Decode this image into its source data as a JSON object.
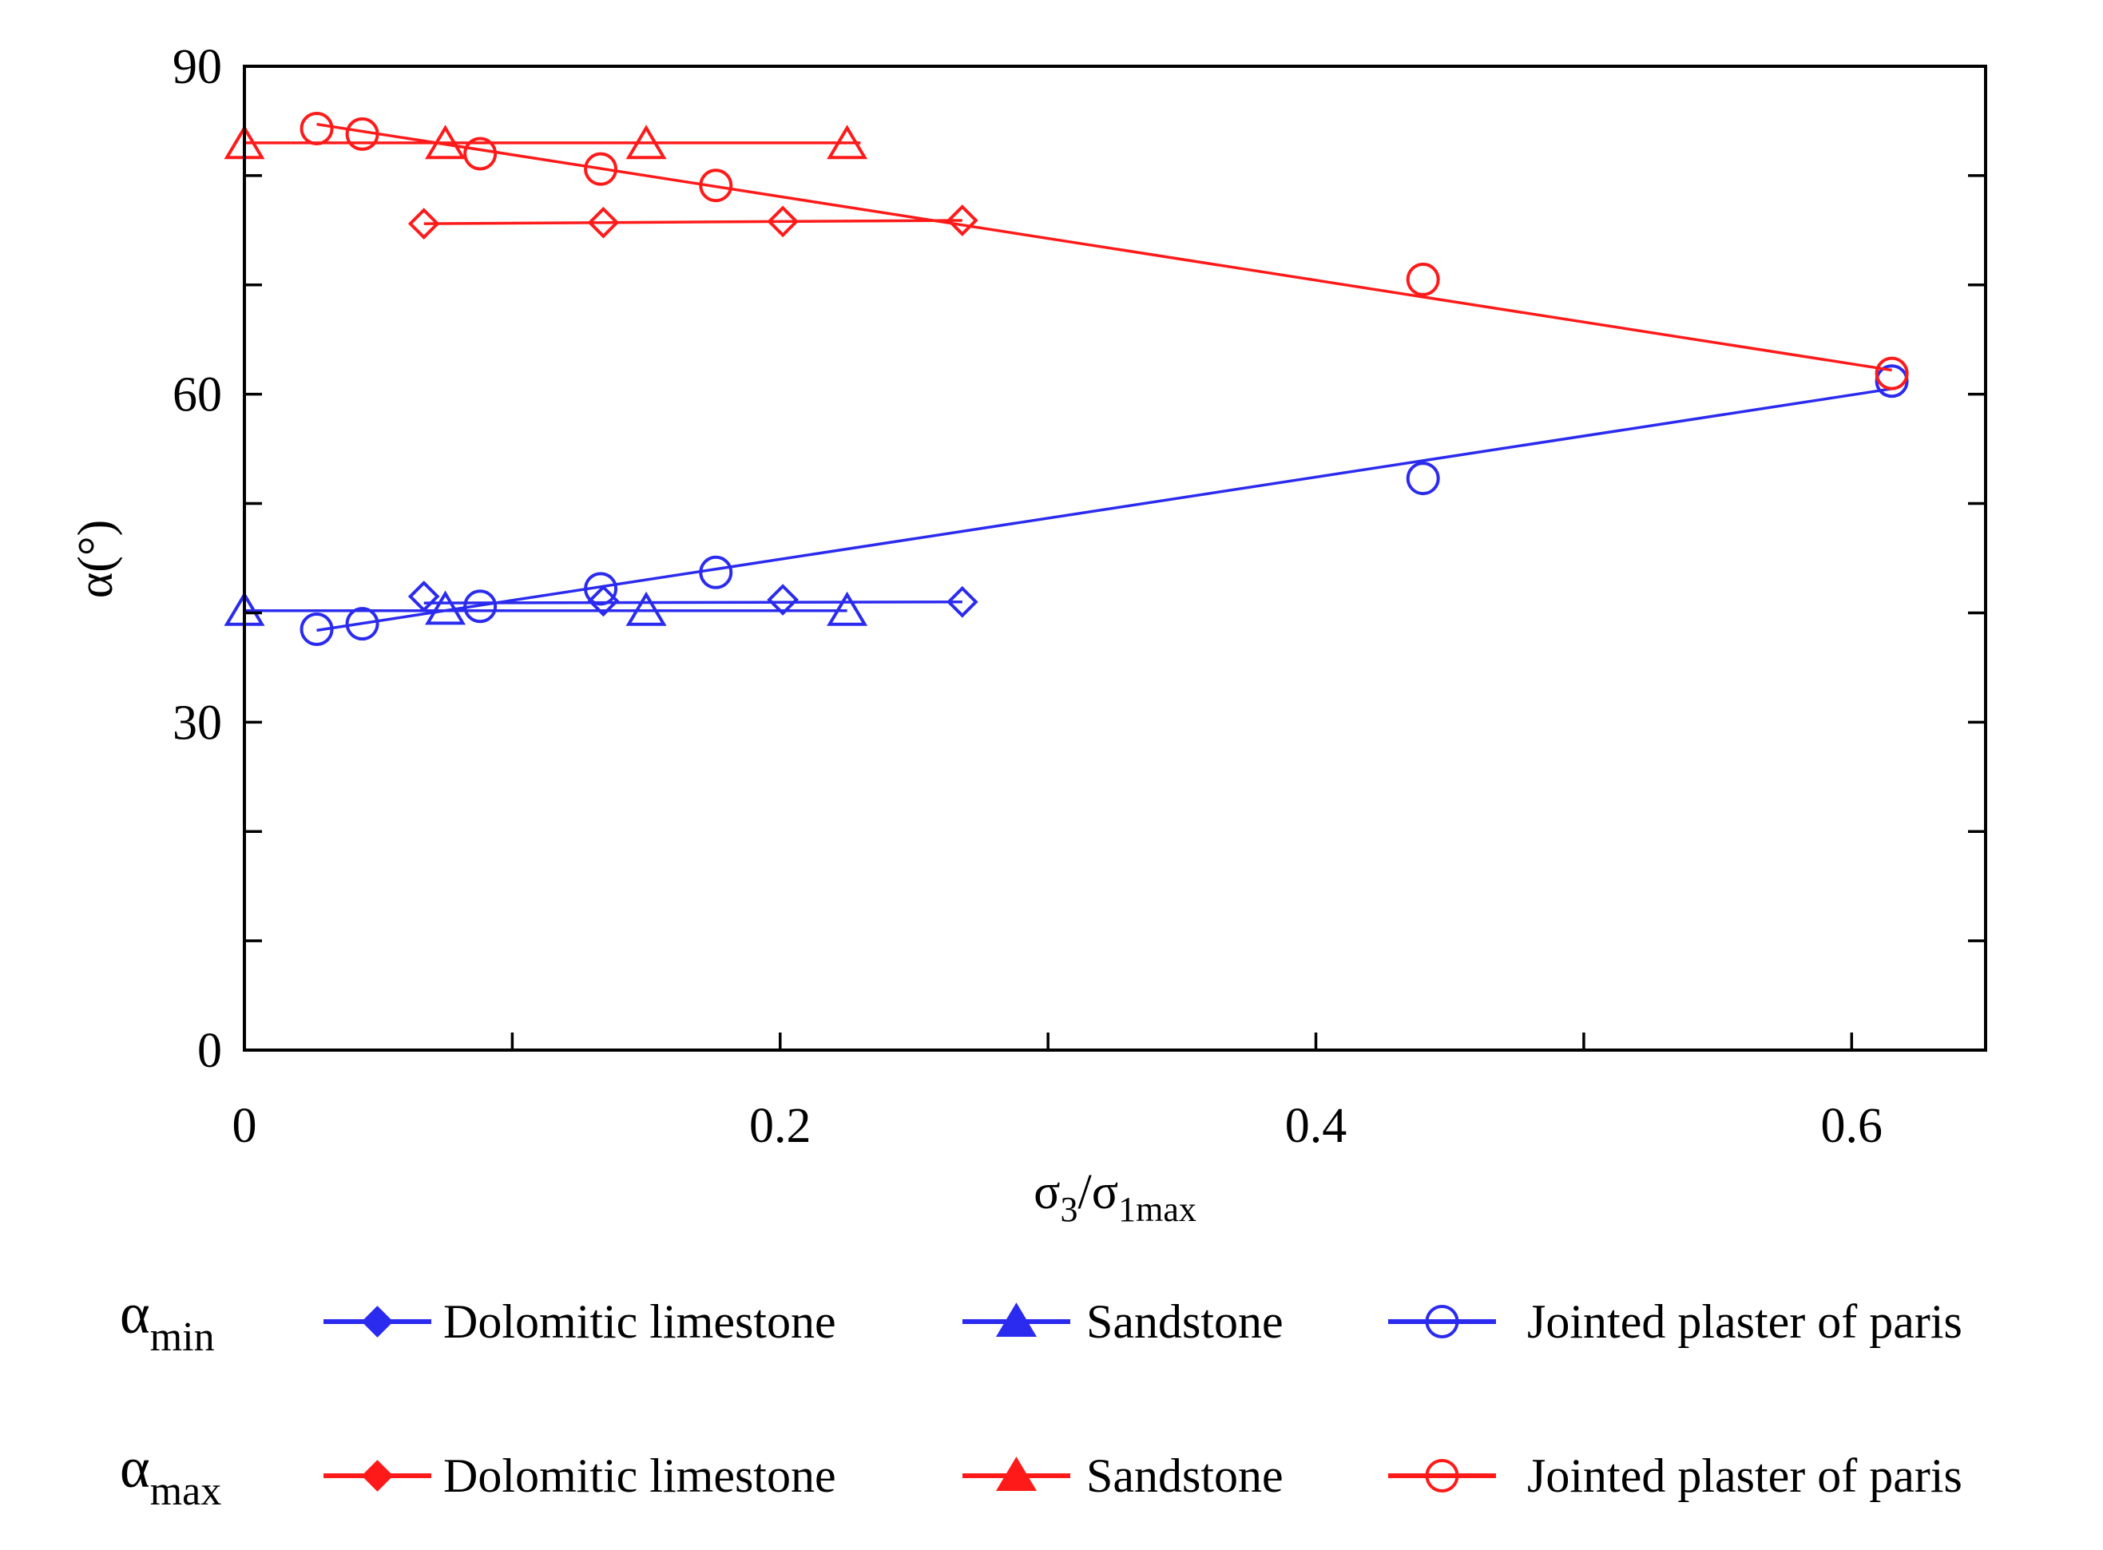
{
  "chart_data": {
    "type": "line",
    "xlabel": "σ3/σ1max",
    "ylabel": "α(°)",
    "xlim": [
      0,
      0.65
    ],
    "ylim": [
      0,
      90
    ],
    "x_ticks": [
      0,
      0.2,
      0.4,
      0.6
    ],
    "x_tick_labels": [
      "0",
      "0.2",
      "0.4",
      "0.6"
    ],
    "x_minor_ticks": [
      0.1,
      0.3,
      0.5
    ],
    "y_ticks": [
      0,
      30,
      60,
      90
    ],
    "y_tick_labels": [
      "0",
      "30",
      "60",
      "90"
    ],
    "y_minor_ticks": [
      10,
      20,
      40,
      50,
      70,
      80
    ],
    "legend_position": "bottom",
    "legend_row_labels": [
      {
        "base": "α",
        "sub": "min"
      },
      {
        "base": "α",
        "sub": "max"
      }
    ],
    "colors": {
      "min": "#2b2bef",
      "max": "#ff1a1a"
    },
    "series": [
      {
        "name": "Dolomitic limestone",
        "group": "min",
        "marker": "diamond",
        "points": [
          [
            0.067,
            41.5
          ],
          [
            0.134,
            41.1
          ],
          [
            0.201,
            41.2
          ],
          [
            0.268,
            41.0
          ]
        ],
        "fit": [
          [
            0.067,
            40.9
          ],
          [
            0.268,
            41.0
          ]
        ]
      },
      {
        "name": "Sandstone",
        "group": "min",
        "marker": "triangle",
        "points": [
          [
            0.0,
            40.2
          ],
          [
            0.075,
            40.3
          ],
          [
            0.15,
            40.2
          ],
          [
            0.225,
            40.2
          ]
        ],
        "fit": [
          [
            0.0,
            40.2
          ],
          [
            0.225,
            40.2
          ]
        ]
      },
      {
        "name": "Jointed plaster of paris",
        "group": "min",
        "marker": "circle",
        "points": [
          [
            0.027,
            38.5
          ],
          [
            0.044,
            39.0
          ],
          [
            0.088,
            40.6
          ],
          [
            0.133,
            42.2
          ],
          [
            0.176,
            43.7
          ],
          [
            0.44,
            52.3
          ],
          [
            0.615,
            61.2
          ]
        ],
        "fit": [
          [
            0.027,
            38.4
          ],
          [
            0.615,
            60.5
          ]
        ]
      },
      {
        "name": "Dolomitic limestone",
        "group": "max",
        "marker": "diamond",
        "points": [
          [
            0.067,
            75.6
          ],
          [
            0.134,
            75.7
          ],
          [
            0.201,
            75.8
          ],
          [
            0.268,
            75.9
          ]
        ],
        "fit": [
          [
            0.067,
            75.6
          ],
          [
            0.268,
            75.9
          ]
        ]
      },
      {
        "name": "Sandstone",
        "group": "max",
        "marker": "triangle",
        "points": [
          [
            0.0,
            82.9
          ],
          [
            0.075,
            82.9
          ],
          [
            0.15,
            82.9
          ],
          [
            0.225,
            82.9
          ]
        ],
        "fit": [
          [
            0.0,
            83.0
          ],
          [
            0.23,
            83.0
          ]
        ]
      },
      {
        "name": "Jointed plaster of paris",
        "group": "max",
        "marker": "circle",
        "points": [
          [
            0.027,
            84.3
          ],
          [
            0.044,
            83.8
          ],
          [
            0.088,
            82.0
          ],
          [
            0.133,
            80.6
          ],
          [
            0.176,
            79.1
          ],
          [
            0.44,
            70.5
          ],
          [
            0.615,
            61.9
          ]
        ],
        "fit": [
          [
            0.027,
            84.7
          ],
          [
            0.615,
            62.2
          ]
        ]
      }
    ]
  }
}
